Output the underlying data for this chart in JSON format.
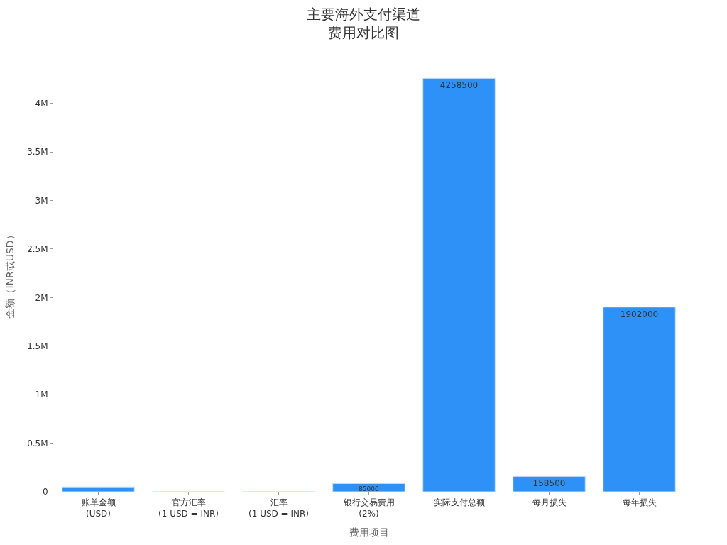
{
  "chart_data": {
    "type": "bar",
    "title": [
      "主要海外支付渠道",
      "费用对比图"
    ],
    "xlabel": "费用项目",
    "ylabel": "金额（INR或USD）",
    "categories": [
      "账单金额\n(USD)",
      "官方汇率\n(1 USD = INR)",
      "汇率\n(1 USD = INR)",
      "银行交易费用\n(2%)",
      "实际支付总额",
      "每月损失",
      "每年损失"
    ],
    "values": [
      50000,
      83,
      85,
      85000,
      4258500,
      158500,
      1902000
    ],
    "value_labels": [
      null,
      null,
      null,
      "85000",
      "4258500",
      "158500",
      "1902000"
    ],
    "color": "#2e91f8",
    "ylim": [
      0,
      4480000
    ],
    "yticks": [
      {
        "value": 0,
        "label": "0"
      },
      {
        "value": 500000,
        "label": "0.5M"
      },
      {
        "value": 1000000,
        "label": "1M"
      },
      {
        "value": 1500000,
        "label": "1.5M"
      },
      {
        "value": 2000000,
        "label": "2M"
      },
      {
        "value": 2500000,
        "label": "2.5M"
      },
      {
        "value": 3000000,
        "label": "3M"
      },
      {
        "value": 3500000,
        "label": "3.5M"
      },
      {
        "value": 4000000,
        "label": "4M"
      }
    ],
    "legend": false
  }
}
